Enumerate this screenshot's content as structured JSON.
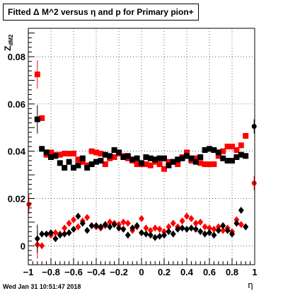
{
  "chart_data": {
    "type": "scatter",
    "title": "Fitted Δ M^2 versus η and p for Primary pion+",
    "xlabel": "η",
    "ylabel": "Z_dM2",
    "xlim": [
      -1.0,
      1.0
    ],
    "ylim": [
      -0.008,
      0.092
    ],
    "grid": true,
    "xticks": [
      "−1",
      "−0.8",
      "−0.6",
      "−0.4",
      "−0.2",
      "0",
      "0.2",
      "0.4",
      "0.6",
      "0.8",
      "1"
    ],
    "yticks": [
      "0",
      "0.02",
      "0.04",
      "0.06",
      "0.08"
    ],
    "series": [
      {
        "color": "#ff0000",
        "marker": "square",
        "x": [
          -0.92,
          -0.88,
          -0.84,
          -0.8,
          -0.76,
          -0.72,
          -0.68,
          -0.64,
          -0.6,
          -0.56,
          -0.52,
          -0.48,
          -0.44,
          -0.4,
          -0.36,
          -0.32,
          -0.28,
          -0.24,
          -0.2,
          -0.16,
          -0.12,
          -0.08,
          -0.04,
          0.0,
          0.04,
          0.08,
          0.12,
          0.16,
          0.2,
          0.24,
          0.28,
          0.32,
          0.36,
          0.4,
          0.44,
          0.48,
          0.52,
          0.56,
          0.6,
          0.64,
          0.68,
          0.72,
          0.76,
          0.8,
          0.84,
          0.88,
          0.92
        ],
        "y": [
          0.0725,
          0.054,
          0.0385,
          0.0395,
          0.0385,
          0.0385,
          0.039,
          0.039,
          0.039,
          0.0365,
          0.0355,
          0.034,
          0.04,
          0.0395,
          0.039,
          0.0345,
          0.037,
          0.0375,
          0.039,
          0.038,
          0.037,
          0.036,
          0.0345,
          0.0345,
          0.0345,
          0.034,
          0.0355,
          0.0345,
          0.0325,
          0.0355,
          0.0355,
          0.0345,
          0.0375,
          0.0395,
          0.036,
          0.037,
          0.035,
          0.0345,
          0.0345,
          0.0345,
          0.038,
          0.04,
          0.042,
          0.042,
          0.0405,
          0.0425,
          0.0465
        ]
      },
      {
        "color": "#000000",
        "marker": "square",
        "x": [
          -0.92,
          -0.88,
          -0.84,
          -0.8,
          -0.76,
          -0.72,
          -0.68,
          -0.64,
          -0.6,
          -0.56,
          -0.52,
          -0.48,
          -0.44,
          -0.4,
          -0.36,
          -0.32,
          -0.28,
          -0.24,
          -0.2,
          -0.16,
          -0.12,
          -0.08,
          -0.04,
          0.0,
          0.04,
          0.08,
          0.12,
          0.16,
          0.2,
          0.24,
          0.28,
          0.32,
          0.36,
          0.4,
          0.44,
          0.48,
          0.52,
          0.56,
          0.6,
          0.64,
          0.68,
          0.72,
          0.76,
          0.8,
          0.84,
          0.88,
          0.92
        ],
        "y": [
          0.0535,
          0.041,
          0.0395,
          0.0375,
          0.038,
          0.035,
          0.033,
          0.0355,
          0.033,
          0.034,
          0.037,
          0.033,
          0.0345,
          0.0355,
          0.036,
          0.0385,
          0.038,
          0.0405,
          0.0395,
          0.0375,
          0.038,
          0.0365,
          0.037,
          0.035,
          0.0375,
          0.037,
          0.0365,
          0.037,
          0.037,
          0.034,
          0.0355,
          0.0365,
          0.037,
          0.038,
          0.037,
          0.0355,
          0.0375,
          0.0405,
          0.041,
          0.0405,
          0.0395,
          0.037,
          0.036,
          0.036,
          0.0375,
          0.0385,
          0.038
        ]
      },
      {
        "color": "#ff0000",
        "marker": "diamond",
        "x": [
          -0.92,
          -0.88,
          -0.84,
          -0.8,
          -0.76,
          -0.72,
          -0.68,
          -0.64,
          -0.6,
          -0.56,
          -0.52,
          -0.48,
          -0.44,
          -0.4,
          -0.36,
          -0.32,
          -0.28,
          -0.24,
          -0.2,
          -0.16,
          -0.12,
          -0.08,
          -0.04,
          0.0,
          0.04,
          0.08,
          0.12,
          0.16,
          0.2,
          0.24,
          0.28,
          0.32,
          0.36,
          0.4,
          0.44,
          0.48,
          0.52,
          0.56,
          0.6,
          0.64,
          0.68,
          0.72,
          0.76,
          0.8,
          0.84,
          0.88,
          0.92
        ],
        "y": [
          0.0005,
          0.0,
          0.005,
          0.0045,
          0.0055,
          0.005,
          0.0075,
          0.0095,
          0.011,
          0.008,
          0.0105,
          0.012,
          0.0085,
          0.008,
          0.0075,
          0.0085,
          0.01,
          0.0095,
          0.009,
          0.01,
          0.0095,
          0.0065,
          0.008,
          0.0115,
          0.0075,
          0.0065,
          0.0075,
          0.007,
          0.006,
          0.008,
          0.0095,
          0.008,
          0.0105,
          0.0125,
          0.0115,
          0.0095,
          0.01,
          0.008,
          0.0075,
          0.007,
          0.008,
          0.0065,
          0.0075,
          0.006,
          0.011,
          0.009,
          0.008
        ]
      },
      {
        "color": "#000000",
        "marker": "diamond",
        "x": [
          -0.92,
          -0.88,
          -0.84,
          -0.8,
          -0.76,
          -0.72,
          -0.68,
          -0.64,
          -0.6,
          -0.56,
          -0.52,
          -0.48,
          -0.44,
          -0.4,
          -0.36,
          -0.32,
          -0.28,
          -0.24,
          -0.2,
          -0.16,
          -0.12,
          -0.08,
          -0.04,
          0.0,
          0.04,
          0.08,
          0.12,
          0.16,
          0.2,
          0.24,
          0.28,
          0.32,
          0.36,
          0.4,
          0.44,
          0.48,
          0.52,
          0.56,
          0.6,
          0.64,
          0.68,
          0.72,
          0.76,
          0.8,
          0.84,
          0.88,
          0.92
        ],
        "y": [
          0.003,
          0.005,
          0.005,
          0.0055,
          0.003,
          0.0045,
          0.005,
          0.0055,
          0.007,
          0.0125,
          0.0095,
          0.0065,
          0.0085,
          0.0085,
          0.008,
          0.009,
          0.008,
          0.009,
          0.0075,
          0.007,
          0.0045,
          0.0075,
          0.0085,
          0.0055,
          0.005,
          0.0045,
          0.0035,
          0.004,
          0.0045,
          0.006,
          0.005,
          0.007,
          0.0075,
          0.007,
          0.0075,
          0.007,
          0.006,
          0.005,
          0.0055,
          0.0045,
          0.0065,
          0.0085,
          0.0065,
          0.005,
          0.0095,
          0.015,
          0.008
        ]
      }
    ],
    "edge_points": [
      {
        "x": -0.995,
        "y": 0.0175,
        "color": "#ff0000",
        "err": 0.004
      },
      {
        "x": 0.995,
        "y": 0.0505,
        "color": "#000000",
        "err": 0.003
      },
      {
        "x": 0.995,
        "y": 0.0265,
        "color": "#ff0000",
        "err": 0.003
      }
    ]
  },
  "footer": {
    "timestamp": "Wed Jan 31 10:51:47 2018"
  }
}
